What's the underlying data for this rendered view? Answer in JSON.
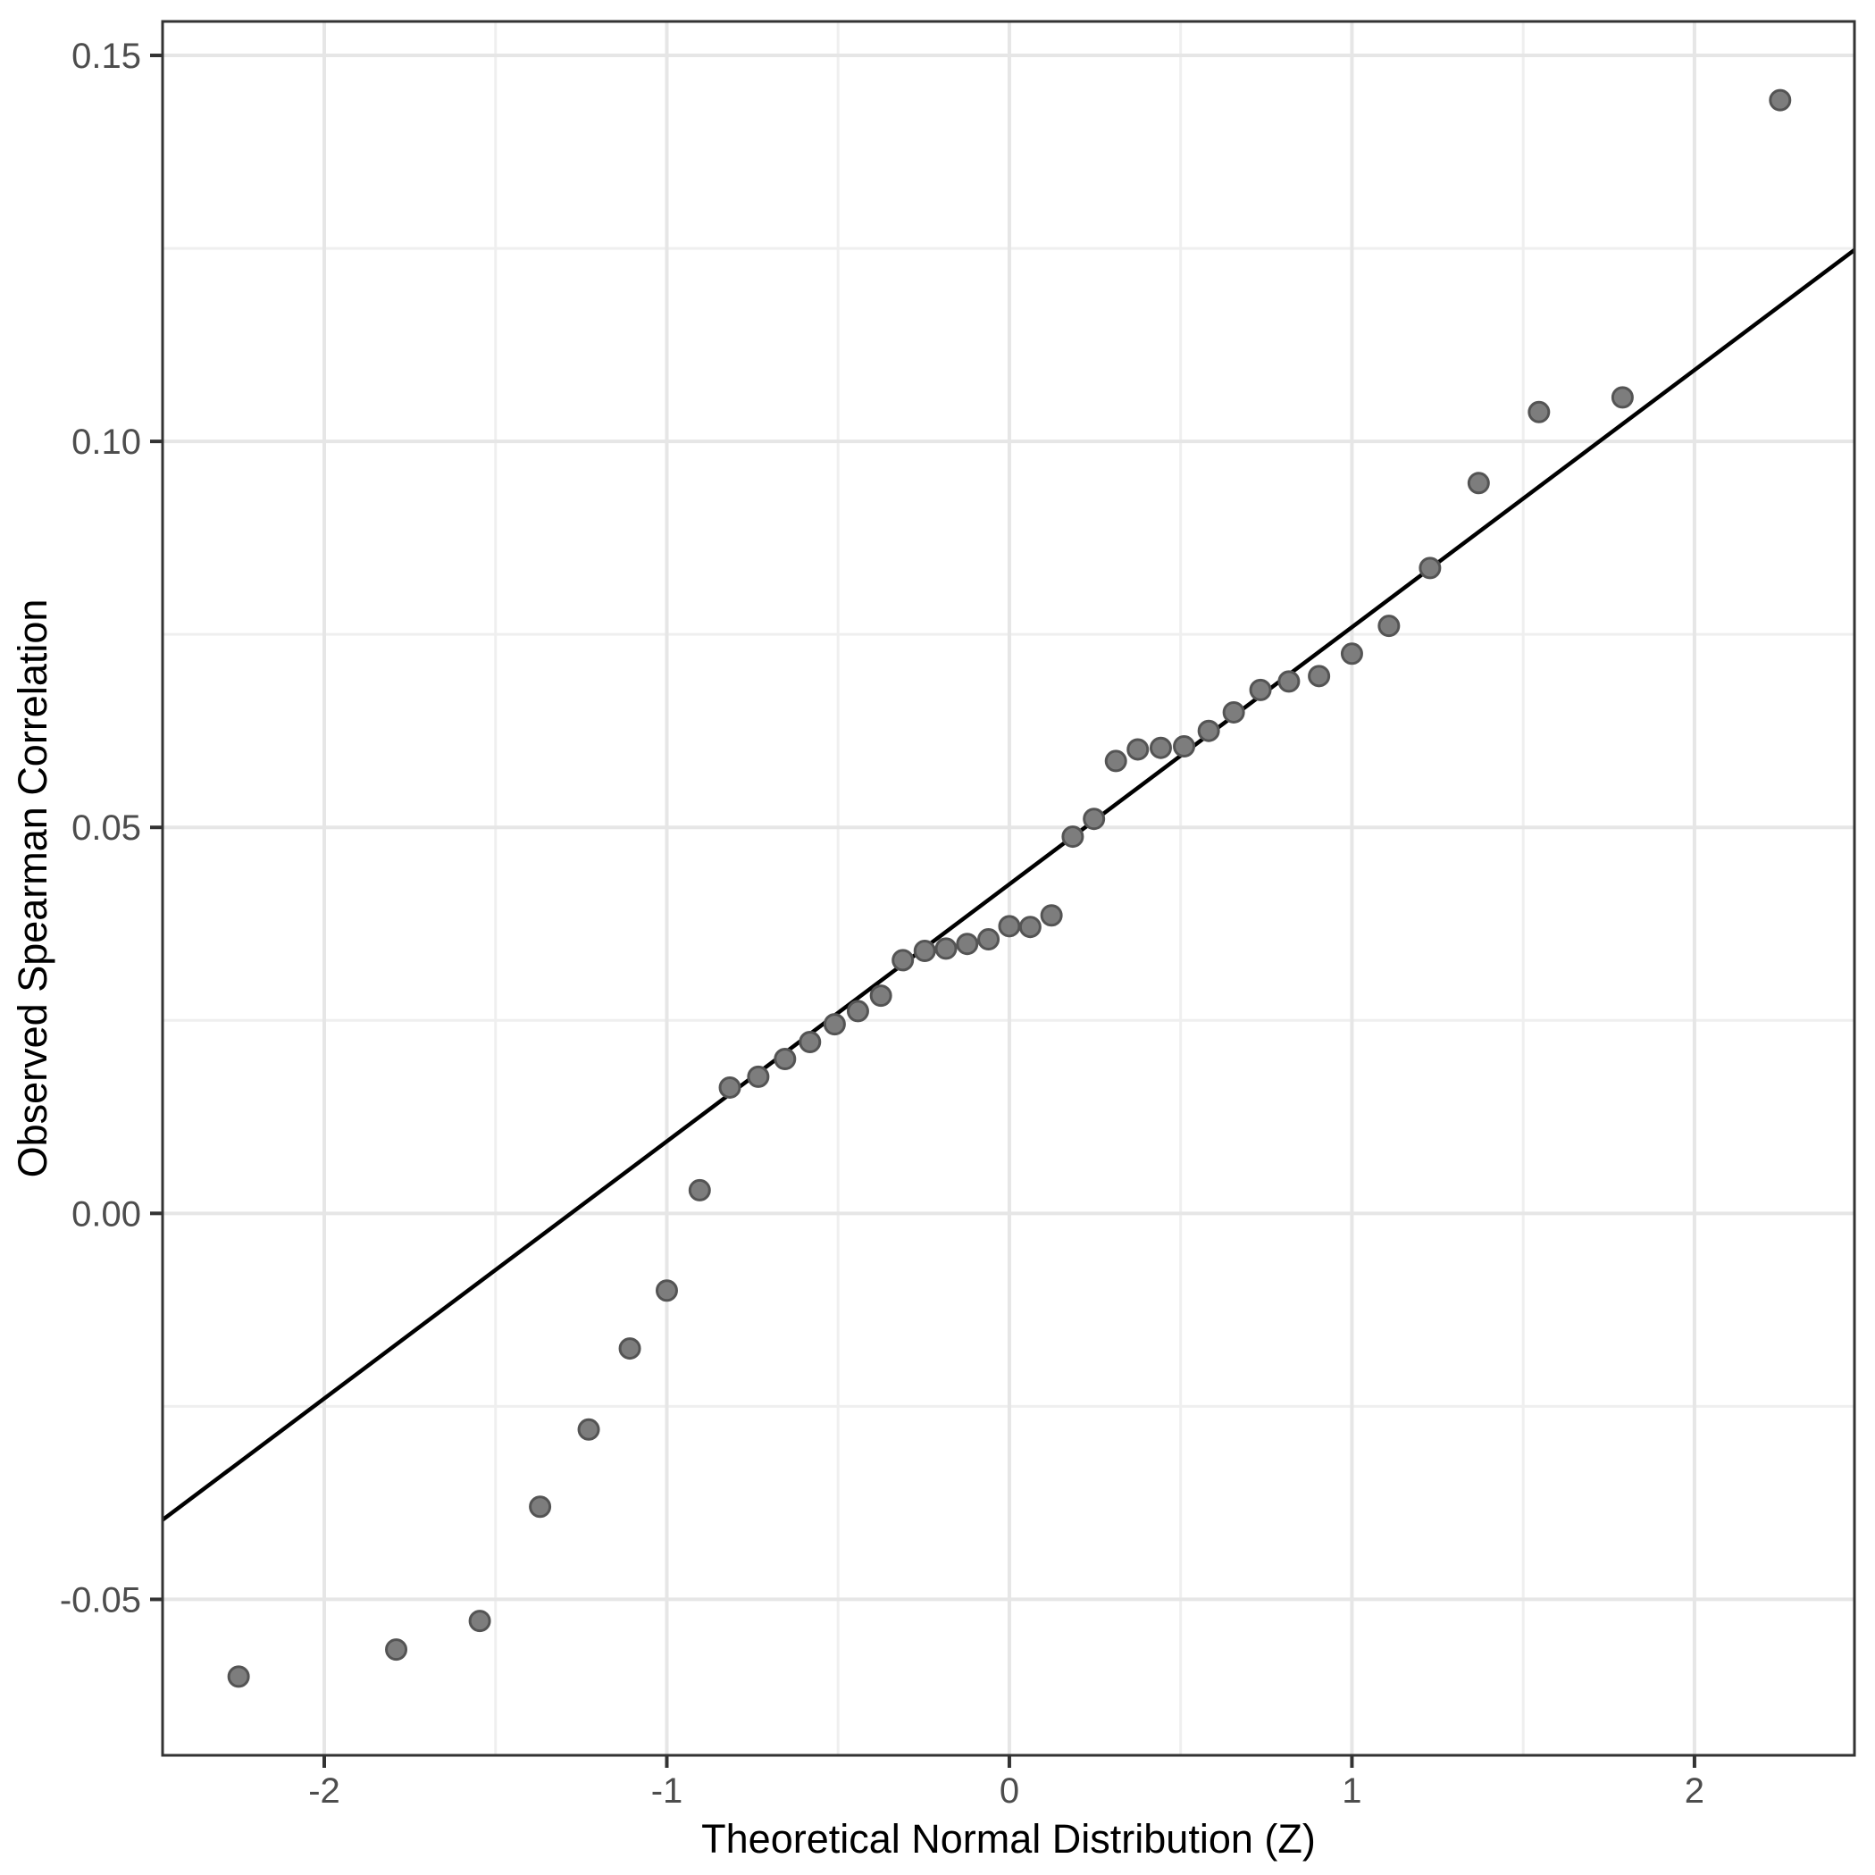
{
  "chart_data": {
    "type": "scatter",
    "title": "",
    "xlabel": "Theoretical Normal Distribution (Z)",
    "ylabel": "Observed Spearman Correlation",
    "xlim": [
      -2.472,
      2.467
    ],
    "ylim": [
      -0.0702,
      0.1544
    ],
    "grid": true,
    "legend_position": "none",
    "x_major_ticks": [
      -2,
      -1,
      0,
      1,
      2
    ],
    "x_tick_labels": [
      "-2",
      "-1",
      "0",
      "1",
      "2"
    ],
    "x_minor_ticks": [
      -1.5,
      -0.5,
      0.5,
      1.5
    ],
    "y_major_ticks": [
      -0.05,
      0,
      0.05,
      0.1,
      0.15
    ],
    "y_tick_labels": [
      "-0.05",
      "0.00",
      "0.05",
      "0.10",
      "0.15"
    ],
    "y_minor_ticks": [
      -0.025,
      0.025,
      0.075,
      0.125
    ],
    "reference_line": {
      "x1": -2.472,
      "y1": -0.0397,
      "x2": 2.467,
      "y2": 0.1248
    },
    "series": [
      {
        "name": "observed-vs-theoretical-quantiles",
        "points": [
          [
            -2.25,
            -0.06
          ],
          [
            -1.79,
            -0.0565
          ],
          [
            -1.546,
            -0.0528
          ],
          [
            -1.37,
            -0.038
          ],
          [
            -1.228,
            -0.028
          ],
          [
            -1.108,
            -0.0175
          ],
          [
            -1.0,
            -0.01
          ],
          [
            -0.904,
            0.003
          ],
          [
            -0.816,
            0.0163
          ],
          [
            -0.733,
            0.0177
          ],
          [
            -0.655,
            0.02
          ],
          [
            -0.582,
            0.0222
          ],
          [
            -0.51,
            0.0245
          ],
          [
            -0.442,
            0.0262
          ],
          [
            -0.375,
            0.0282
          ],
          [
            -0.311,
            0.0328
          ],
          [
            -0.247,
            0.034
          ],
          [
            -0.185,
            0.0343
          ],
          [
            -0.123,
            0.0349
          ],
          [
            -0.061,
            0.0355
          ],
          [
            0.0,
            0.0372
          ],
          [
            0.061,
            0.0371
          ],
          [
            0.123,
            0.0386
          ],
          [
            0.185,
            0.0488
          ],
          [
            0.247,
            0.0511
          ],
          [
            0.311,
            0.0586
          ],
          [
            0.375,
            0.0601
          ],
          [
            0.442,
            0.0603
          ],
          [
            0.51,
            0.0605
          ],
          [
            0.582,
            0.0625
          ],
          [
            0.655,
            0.0649
          ],
          [
            0.733,
            0.0678
          ],
          [
            0.816,
            0.0689
          ],
          [
            0.904,
            0.0696
          ],
          [
            1.0,
            0.0725
          ],
          [
            1.108,
            0.0761
          ],
          [
            1.228,
            0.0836
          ],
          [
            1.37,
            0.0946
          ],
          [
            1.546,
            0.1038
          ],
          [
            1.79,
            0.1057
          ],
          [
            2.25,
            0.1442
          ]
        ]
      }
    ]
  },
  "colors": {
    "background": "#ffffff",
    "panel_background": "#ffffff",
    "panel_border": "#333333",
    "grid_major": "#e6e6e6",
    "grid_minor": "#efefef",
    "tick_mark": "#333333",
    "tick_label": "#4d4d4d",
    "axis_title": "#000000",
    "reference_line": "#000000",
    "point_fill": "#7d7d7d",
    "point_stroke": "#545454"
  }
}
